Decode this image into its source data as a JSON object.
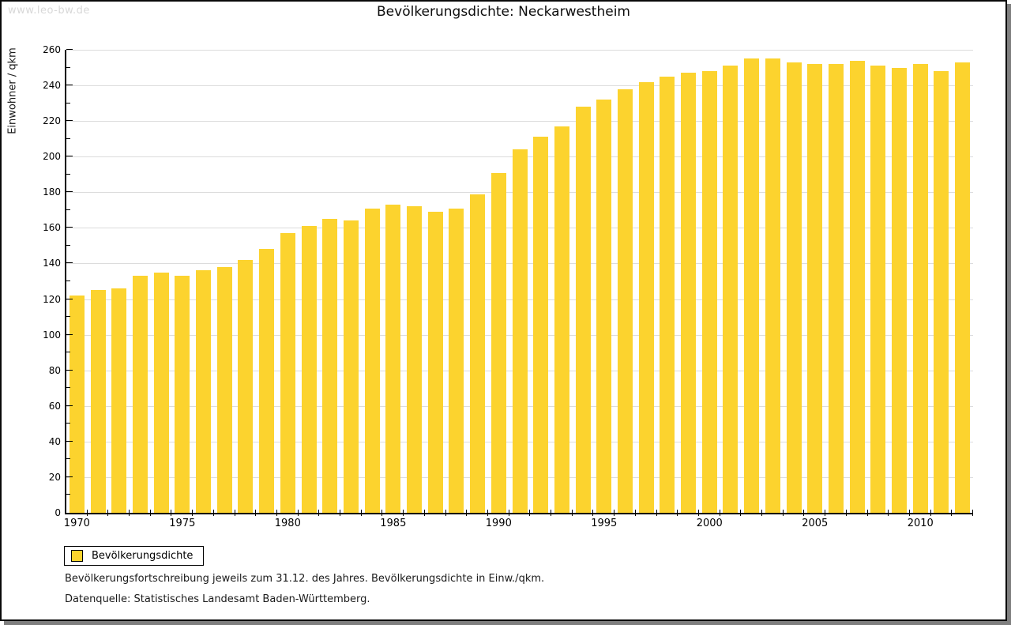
{
  "watermark": "www.leo-bw.de",
  "title": "Bevölkerungsdichte: Neckarwestheim",
  "legend": {
    "label": "Bevölkerungsdichte",
    "swatch_color": "#fcd32e"
  },
  "footnotes": [
    "Bevölkerungsfortschreibung jeweils zum 31.12. des Jahres. Bevölkerungsdichte in Einw./qkm.",
    "Datenquelle: Statistisches Landesamt Baden-Württemberg."
  ],
  "chart_data": {
    "type": "bar",
    "title": "Bevölkerungsdichte: Neckarwestheim",
    "xlabel": "",
    "ylabel": "Einwohner / qkm",
    "ylim": [
      0,
      260
    ],
    "ytick_major_step": 20,
    "ytick_minor_step": 10,
    "grid": "horizontal-major",
    "legend_position": "bottom-left",
    "bar_color": "#fcd32e",
    "gridline_color": "#dcdcdc",
    "categories": [
      1970,
      1971,
      1972,
      1973,
      1974,
      1975,
      1976,
      1977,
      1978,
      1979,
      1980,
      1981,
      1982,
      1983,
      1984,
      1985,
      1986,
      1987,
      1988,
      1989,
      1990,
      1991,
      1992,
      1993,
      1994,
      1995,
      1996,
      1997,
      1998,
      1999,
      2000,
      2001,
      2002,
      2003,
      2004,
      2005,
      2006,
      2007,
      2008,
      2009,
      2010,
      2011,
      2012
    ],
    "values": [
      122,
      125,
      126,
      133,
      135,
      133,
      136,
      138,
      142,
      148,
      157,
      161,
      165,
      164,
      171,
      173,
      172,
      169,
      171,
      179,
      191,
      204,
      211,
      217,
      228,
      232,
      238,
      242,
      245,
      247,
      248,
      251,
      255,
      255,
      253,
      252,
      252,
      254,
      251,
      250,
      252,
      248,
      253
    ],
    "xtick_labels": [
      "1970",
      "1975",
      "1980",
      "1985",
      "1990",
      "1995",
      "2000",
      "2005",
      "2010"
    ]
  }
}
